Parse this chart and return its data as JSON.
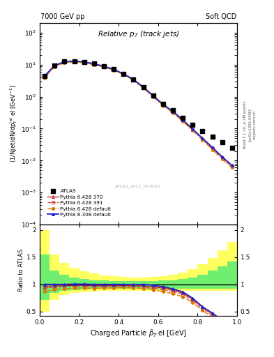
{
  "title_left": "7000 GeV pp",
  "title_right": "Soft QCD",
  "plot_title": "Relative $p_{T_{(\\rm track\\,jets)}}$",
  "xlabel": "Charged Particle $\\tilde{p}_T$ el [GeV]",
  "ylabel_main": "(1/Njet)dN/dp$^{\\rm rel}_T$ el [GeV$^{-1}$]",
  "ylabel_ratio": "Ratio to ATLAS",
  "watermark": "ATLAS_2011_I919017",
  "data_x": [
    0.025,
    0.075,
    0.125,
    0.175,
    0.225,
    0.275,
    0.325,
    0.375,
    0.425,
    0.475,
    0.525,
    0.575,
    0.625,
    0.675,
    0.725,
    0.775,
    0.825,
    0.875,
    0.925,
    0.975
  ],
  "data_y": [
    4.5,
    9.5,
    12.5,
    13.0,
    12.2,
    10.8,
    9.0,
    7.2,
    5.2,
    3.5,
    2.0,
    1.1,
    0.6,
    0.38,
    0.22,
    0.13,
    0.085,
    0.055,
    0.038,
    0.025
  ],
  "py6_370_x": [
    0.025,
    0.075,
    0.125,
    0.175,
    0.225,
    0.275,
    0.325,
    0.375,
    0.425,
    0.475,
    0.525,
    0.575,
    0.625,
    0.675,
    0.725,
    0.775,
    0.825,
    0.875,
    0.925,
    0.975
  ],
  "py6_370_y": [
    4.3,
    9.2,
    12.2,
    12.8,
    12.0,
    10.5,
    8.8,
    7.0,
    5.1,
    3.4,
    1.95,
    1.05,
    0.56,
    0.34,
    0.185,
    0.095,
    0.049,
    0.025,
    0.013,
    0.007
  ],
  "py6_391_x": [
    0.025,
    0.075,
    0.125,
    0.175,
    0.225,
    0.275,
    0.325,
    0.375,
    0.425,
    0.475,
    0.525,
    0.575,
    0.625,
    0.675,
    0.725,
    0.775,
    0.825,
    0.875,
    0.925,
    0.975
  ],
  "py6_391_y": [
    4.2,
    9.0,
    12.0,
    12.6,
    11.8,
    10.35,
    8.65,
    6.9,
    5.05,
    3.35,
    1.9,
    1.02,
    0.54,
    0.33,
    0.18,
    0.092,
    0.047,
    0.024,
    0.012,
    0.0065
  ],
  "py6_def_x": [
    0.025,
    0.075,
    0.125,
    0.175,
    0.225,
    0.275,
    0.325,
    0.375,
    0.425,
    0.475,
    0.525,
    0.575,
    0.625,
    0.675,
    0.725,
    0.775,
    0.825,
    0.875,
    0.925,
    0.975
  ],
  "py6_def_y": [
    3.9,
    8.6,
    11.5,
    12.1,
    11.4,
    10.0,
    8.4,
    6.7,
    4.9,
    3.25,
    1.85,
    0.99,
    0.52,
    0.315,
    0.17,
    0.087,
    0.044,
    0.022,
    0.011,
    0.006
  ],
  "py8_def_x": [
    0.025,
    0.075,
    0.125,
    0.175,
    0.225,
    0.275,
    0.325,
    0.375,
    0.425,
    0.475,
    0.525,
    0.575,
    0.625,
    0.675,
    0.725,
    0.775,
    0.825,
    0.875,
    0.925,
    0.975
  ],
  "py8_def_y": [
    4.5,
    9.5,
    12.5,
    13.1,
    12.3,
    10.8,
    9.0,
    7.2,
    5.2,
    3.48,
    2.0,
    1.08,
    0.575,
    0.348,
    0.19,
    0.097,
    0.05,
    0.026,
    0.013,
    0.007
  ],
  "ratio_py6_370": [
    0.96,
    0.97,
    0.975,
    0.985,
    0.985,
    0.975,
    0.977,
    0.973,
    0.981,
    0.971,
    0.975,
    0.955,
    0.935,
    0.895,
    0.84,
    0.73,
    0.58,
    0.46,
    0.34,
    0.28
  ],
  "ratio_py6_391": [
    0.935,
    0.948,
    0.96,
    0.969,
    0.967,
    0.958,
    0.961,
    0.958,
    0.971,
    0.957,
    0.95,
    0.927,
    0.9,
    0.87,
    0.818,
    0.708,
    0.553,
    0.436,
    0.316,
    0.26
  ],
  "ratio_py6_def": [
    0.867,
    0.905,
    0.92,
    0.931,
    0.934,
    0.926,
    0.933,
    0.93,
    0.942,
    0.929,
    0.925,
    0.9,
    0.867,
    0.83,
    0.773,
    0.669,
    0.518,
    0.4,
    0.29,
    0.24
  ],
  "ratio_py8_def": [
    1.0,
    1.0,
    1.0,
    1.005,
    1.005,
    1.0,
    1.0,
    1.0,
    1.0,
    0.994,
    1.0,
    0.982,
    0.958,
    0.916,
    0.863,
    0.746,
    0.588,
    0.473,
    0.342,
    0.28
  ],
  "band_x_lo": [
    0.0,
    0.05,
    0.1,
    0.15,
    0.2,
    0.25,
    0.3,
    0.35,
    0.4,
    0.45,
    0.5,
    0.55,
    0.6,
    0.65,
    0.7,
    0.75,
    0.8,
    0.85,
    0.9,
    0.95
  ],
  "band_x_hi": [
    0.05,
    0.1,
    0.15,
    0.2,
    0.25,
    0.3,
    0.35,
    0.4,
    0.45,
    0.5,
    0.55,
    0.6,
    0.65,
    0.7,
    0.75,
    0.8,
    0.85,
    0.9,
    0.95,
    1.0
  ],
  "band_yellow_lo": [
    0.5,
    0.72,
    0.8,
    0.84,
    0.86,
    0.87,
    0.88,
    0.88,
    0.88,
    0.88,
    0.88,
    0.88,
    0.88,
    0.88,
    0.88,
    0.88,
    0.88,
    0.88,
    0.88,
    0.88
  ],
  "band_yellow_hi": [
    2.0,
    1.55,
    1.4,
    1.3,
    1.24,
    1.2,
    1.17,
    1.15,
    1.14,
    1.13,
    1.13,
    1.14,
    1.15,
    1.18,
    1.22,
    1.28,
    1.37,
    1.48,
    1.62,
    1.78
  ],
  "band_green_lo": [
    0.72,
    0.84,
    0.88,
    0.9,
    0.91,
    0.915,
    0.92,
    0.92,
    0.92,
    0.92,
    0.92,
    0.92,
    0.92,
    0.92,
    0.92,
    0.92,
    0.92,
    0.92,
    0.92,
    0.92
  ],
  "band_green_hi": [
    1.55,
    1.25,
    1.18,
    1.13,
    1.1,
    1.08,
    1.07,
    1.065,
    1.06,
    1.06,
    1.06,
    1.065,
    1.07,
    1.08,
    1.1,
    1.13,
    1.18,
    1.25,
    1.33,
    1.42
  ],
  "color_py6_370": "#cc2222",
  "color_py6_391": "#cc4444",
  "color_py6_def": "#dd7700",
  "color_py8_def": "#2222cc",
  "ylim_main": [
    0.0001,
    200
  ],
  "ylim_ratio": [
    0.42,
    2.1
  ],
  "xlim": [
    0.0,
    1.0
  ]
}
